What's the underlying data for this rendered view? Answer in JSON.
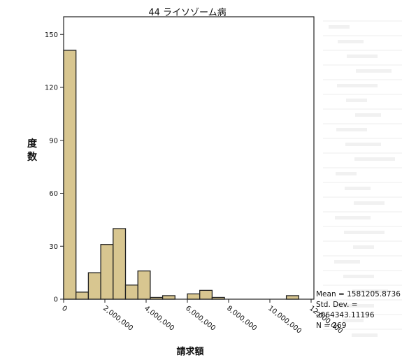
{
  "chart_data": {
    "type": "bar",
    "title": "44 ライソゾーム病",
    "ylabel": "度数",
    "xlabel": "請求額",
    "ylim": [
      0,
      160
    ],
    "y_ticks": [
      0,
      30,
      60,
      90,
      120,
      150
    ],
    "x_ticks": [
      {
        "value": 0,
        "label": "0"
      },
      {
        "value": 2000000,
        "label": "2,000,000"
      },
      {
        "value": 4000000,
        "label": "4,000,000"
      },
      {
        "value": 6000000,
        "label": "6,000,000"
      },
      {
        "value": 8000000,
        "label": "8,000,000"
      },
      {
        "value": 10000000,
        "label": "10,000,000"
      },
      {
        "value": 12000000,
        "label": "12,000,000"
      }
    ],
    "bin_width": 600000,
    "values": [
      141,
      4,
      15,
      31,
      40,
      8,
      16,
      1,
      2,
      0,
      3,
      5,
      1,
      0,
      0,
      0,
      0,
      0,
      2
    ],
    "bar_color": "#d8c690",
    "stats": {
      "mean": "Mean = 1581205.8736",
      "sd_label": "Std. Dev. =",
      "sd_value": "2064343.11196",
      "n": "N = 269"
    }
  }
}
